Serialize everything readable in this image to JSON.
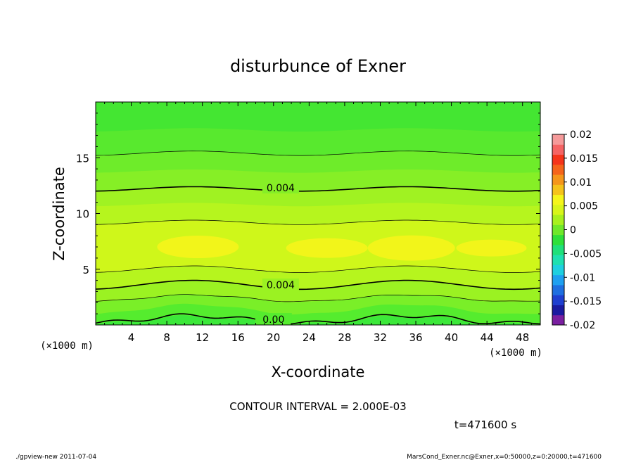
{
  "chart_data": {
    "type": "heatmap",
    "title": "disturbunce of Exner",
    "xlabel": "X-coordinate",
    "ylabel": "Z-coordinate",
    "x_unit_left": "(×1000 m)",
    "x_unit_right": "(×1000 m)",
    "xlim": [
      0,
      50
    ],
    "ylim": [
      0,
      20
    ],
    "x_ticks": [
      4,
      8,
      12,
      16,
      20,
      24,
      28,
      32,
      36,
      40,
      44,
      48
    ],
    "y_ticks": [
      5,
      10,
      15
    ],
    "contour_interval": "CONTOUR INTERVAL = 2.000E-03",
    "time_label": "t=471600 s",
    "colorbar": {
      "ticks": [
        "0.02",
        "0.015",
        "0.01",
        "0.005",
        "0",
        "-0.005",
        "-0.01",
        "-0.015",
        "-0.02"
      ],
      "range": [
        -0.02,
        0.02
      ],
      "colors": [
        "#7a1fa0",
        "#1a1aa0",
        "#1f3fd0",
        "#1f6fe0",
        "#1fa0f0",
        "#1fd0e0",
        "#1fe0b0",
        "#1fe07a",
        "#2ee03a",
        "#6fe82a",
        "#a8f01e",
        "#d8f51a",
        "#f5f51a",
        "#f5c31a",
        "#f5961a",
        "#f5641a",
        "#f5341a",
        "#f56464",
        "#f59a9a"
      ]
    },
    "contour_labels": [
      {
        "text": "0.004",
        "x": 20.8,
        "z": 12.3
      },
      {
        "text": "0.004",
        "x": 20.8,
        "z": 3.6
      },
      {
        "text": "0.00",
        "x": 20.0,
        "z": 0.5
      }
    ],
    "field": {
      "description_bands": [
        {
          "z": [
            0,
            1.4
          ],
          "level": "0.000-0.002"
        },
        {
          "z": [
            1.4,
            5.0
          ],
          "level": "0.002-0.006"
        },
        {
          "z": [
            5.0,
            9.2
          ],
          "level": "0.006-0.008"
        },
        {
          "z": [
            9.2,
            15.5
          ],
          "level": "0.002-0.006"
        },
        {
          "z": [
            15.5,
            20
          ],
          "level": "0.000-0.002"
        }
      ]
    }
  },
  "footer": {
    "left": "./gpview-new   2011-07-04",
    "right": "MarsCond_Exner.nc@Exner,x=0:50000,z=0:20000,t=471600"
  }
}
